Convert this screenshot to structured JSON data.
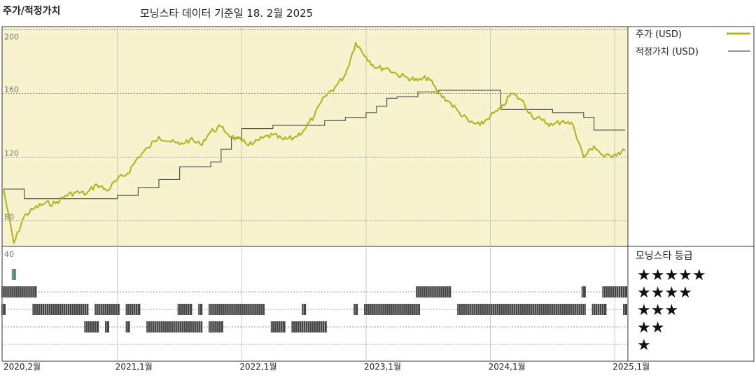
{
  "header": {
    "left_title": "주가/적정가치",
    "subtitle": "모닝스타 데이터 기준일 18. 2월 2025"
  },
  "colors": {
    "price_line": "#b5b52a",
    "fair_value_line": "#555555",
    "plot_bg": "#f7f3cf",
    "star_bar": "#444444",
    "five_star_bar": "#4e8a78"
  },
  "chart_data": [
    {
      "type": "line",
      "x_axis_ticks": [
        "2020,2월",
        "2021,1월",
        "2022,1월",
        "2023,1월",
        "2024,1월",
        "2025,1월"
      ],
      "y_ticks": [
        200,
        160,
        120,
        80
      ],
      "ylim": [
        64,
        202
      ],
      "grid": true,
      "legend": "right",
      "series": [
        {
          "name": "주가 (USD)",
          "points": [
            [
              "2020-02",
              100
            ],
            [
              "2020-03",
              66
            ],
            [
              "2020-04",
              83
            ],
            [
              "2020-05",
              88
            ],
            [
              "2020-06",
              91
            ],
            [
              "2020-07",
              91
            ],
            [
              "2020-08",
              96
            ],
            [
              "2020-09",
              98
            ],
            [
              "2020-10",
              97
            ],
            [
              "2020-11",
              103
            ],
            [
              "2020-12",
              99
            ],
            [
              "2021-01",
              106
            ],
            [
              "2021-02",
              110
            ],
            [
              "2021-03",
              120
            ],
            [
              "2021-04",
              126
            ],
            [
              "2021-05",
              133
            ],
            [
              "2021-06",
              130
            ],
            [
              "2021-07",
              128
            ],
            [
              "2021-08",
              131
            ],
            [
              "2021-09",
              128
            ],
            [
              "2021-10",
              136
            ],
            [
              "2021-11",
              139
            ],
            [
              "2021-12",
              133
            ],
            [
              "2022-01",
              130
            ],
            [
              "2022-02",
              128
            ],
            [
              "2022-03",
              132
            ],
            [
              "2022-04",
              134
            ],
            [
              "2022-05",
              131
            ],
            [
              "2022-06",
              132
            ],
            [
              "2022-07",
              137
            ],
            [
              "2022-08",
              146
            ],
            [
              "2022-09",
              158
            ],
            [
              "2022-10",
              164
            ],
            [
              "2022-11",
              172
            ],
            [
              "2022-12",
              192
            ],
            [
              "2023-01",
              183
            ],
            [
              "2023-02",
              176
            ],
            [
              "2023-03",
              176
            ],
            [
              "2023-04",
              172
            ],
            [
              "2023-05",
              170
            ],
            [
              "2023-06",
              168
            ],
            [
              "2023-07",
              170
            ],
            [
              "2023-08",
              160
            ],
            [
              "2023-09",
              155
            ],
            [
              "2023-10",
              148
            ],
            [
              "2023-11",
              142
            ],
            [
              "2023-12",
              140
            ],
            [
              "2024-01",
              146
            ],
            [
              "2024-02",
              150
            ],
            [
              "2024-03",
              160
            ],
            [
              "2024-04",
              156
            ],
            [
              "2024-05",
              146
            ],
            [
              "2024-06",
              143
            ],
            [
              "2024-07",
              140
            ],
            [
              "2024-08",
              143
            ],
            [
              "2024-09",
              140
            ],
            [
              "2024-10",
              120
            ],
            [
              "2024-11",
              127
            ],
            [
              "2024-12",
              120
            ],
            [
              "2025-01",
              122
            ],
            [
              "2025-02",
              124
            ]
          ]
        },
        {
          "name": "적정가치 (USD)",
          "points": [
            [
              "2020-02",
              100
            ],
            [
              "2020-04",
              94
            ],
            [
              "2020-10",
              94
            ],
            [
              "2021-01",
              96
            ],
            [
              "2021-03",
              101
            ],
            [
              "2021-05",
              106
            ],
            [
              "2021-07",
              114
            ],
            [
              "2021-09",
              114
            ],
            [
              "2021-10",
              117
            ],
            [
              "2021-11",
              125
            ],
            [
              "2021-12",
              132
            ],
            [
              "2022-01",
              138
            ],
            [
              "2022-04",
              140
            ],
            [
              "2022-09",
              143
            ],
            [
              "2022-11",
              145
            ],
            [
              "2023-01",
              148
            ],
            [
              "2023-02",
              152
            ],
            [
              "2023-03",
              157
            ],
            [
              "2023-04",
              158
            ],
            [
              "2023-06",
              161
            ],
            [
              "2023-08",
              162
            ],
            [
              "2024-01",
              162
            ],
            [
              "2024-02",
              150
            ],
            [
              "2024-07",
              148
            ],
            [
              "2024-10",
              145
            ],
            [
              "2024-11",
              137
            ],
            [
              "2025-01",
              137
            ],
            [
              "2025-02",
              137
            ]
          ]
        }
      ]
    },
    {
      "type": "table",
      "title": "모닝스타 등급",
      "y_max_label": "40",
      "rows": [
        {
          "stars": "★★★★★",
          "n": 5,
          "periods": [
            [
              "2020-03",
              "2020-03"
            ]
          ]
        },
        {
          "stars": "★★★★",
          "n": 4,
          "periods": [
            [
              "2020-02",
              "2020-05"
            ],
            [
              "2023-06",
              "2023-09"
            ],
            [
              "2024-10",
              "2024-10"
            ],
            [
              "2024-12",
              "2025-02"
            ]
          ]
        },
        {
          "stars": "★★★",
          "n": 3,
          "periods": [
            [
              "2020-02",
              "2020-02"
            ],
            [
              "2020-05",
              "2020-10"
            ],
            [
              "2020-11",
              "2021-01"
            ],
            [
              "2021-02",
              "2021-03"
            ],
            [
              "2021-07",
              "2021-08"
            ],
            [
              "2021-09",
              "2021-09"
            ],
            [
              "2021-10",
              "2022-03"
            ],
            [
              "2022-07",
              "2022-07"
            ],
            [
              "2022-12",
              "2022-12"
            ],
            [
              "2023-01",
              "2023-06"
            ],
            [
              "2023-10",
              "2024-10"
            ],
            [
              "2024-11",
              "2024-12"
            ],
            [
              "2025-02",
              "2025-02"
            ]
          ]
        },
        {
          "stars": "★★",
          "n": 2,
          "periods": [
            [
              "2020-10",
              "2020-11"
            ],
            [
              "2020-12",
              "2020-12"
            ],
            [
              "2021-02",
              "2021-02"
            ],
            [
              "2021-04",
              "2021-09"
            ],
            [
              "2021-10",
              "2021-11"
            ],
            [
              "2022-04",
              "2022-05"
            ],
            [
              "2022-06",
              "2022-09"
            ]
          ]
        },
        {
          "stars": "★",
          "n": 1,
          "periods": []
        }
      ]
    }
  ]
}
